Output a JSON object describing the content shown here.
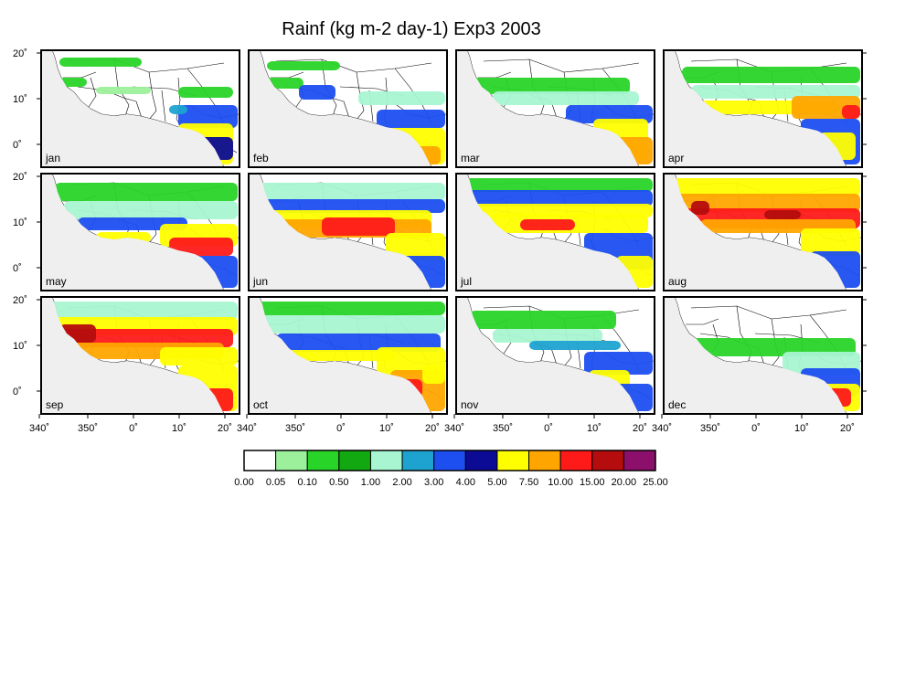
{
  "title": "Rainf (kg m-2 day-1) Exp3 2003",
  "months": [
    "jan",
    "feb",
    "mar",
    "apr",
    "may",
    "jun",
    "jul",
    "aug",
    "sep",
    "oct",
    "nov",
    "dec"
  ],
  "lat_ticks": [
    "20˚",
    "10˚",
    "0˚"
  ],
  "lon_ticks": [
    "340˚",
    "350˚",
    "0˚",
    "10˚",
    "20˚"
  ],
  "colorbar": {
    "colors": [
      "#ffffff",
      "#9cf09c",
      "#29d429",
      "#11a811",
      "#a8f5d2",
      "#1ea3d1",
      "#1c4ef0",
      "#0b0b96",
      "#ffff00",
      "#ffa500",
      "#ff1a1a",
      "#b50d0d",
      "#8c0f6b"
    ],
    "labels": [
      "0.00",
      "0.05",
      "0.10",
      "0.50",
      "1.00",
      "2.00",
      "3.00",
      "4.00",
      "5.00",
      "7.50",
      "10.00",
      "15.00",
      "20.00",
      "25.00"
    ]
  },
  "map_colors": {
    "ocean": "#efefef",
    "land": "#ffffff",
    "border": "#000000"
  }
}
